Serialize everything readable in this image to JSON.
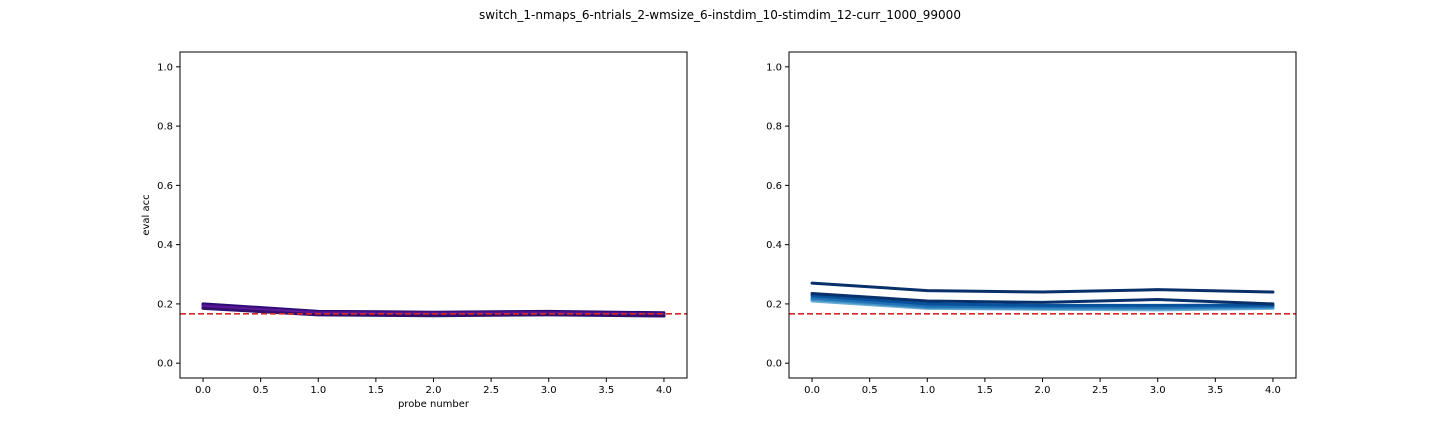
{
  "figure": {
    "suptitle": "switch_1-nmaps_6-ntrials_2-wmsize_6-instdim_10-stimdim_12-curr_1000_99000"
  },
  "chart_data": [
    {
      "type": "line",
      "title": "",
      "xlabel": "probe number",
      "ylabel": "eval acc",
      "xlim": [
        -0.2,
        4.2
      ],
      "ylim": [
        -0.05,
        1.05
      ],
      "xticks": [
        0.0,
        0.5,
        1.0,
        1.5,
        2.0,
        2.5,
        3.0,
        3.5,
        4.0
      ],
      "xtick_labels": [
        "0.0",
        "0.5",
        "1.0",
        "1.5",
        "2.0",
        "2.5",
        "3.0",
        "3.5",
        "4.0"
      ],
      "yticks": [
        0.0,
        0.2,
        0.4,
        0.6,
        0.8,
        1.0
      ],
      "ytick_labels": [
        "0.0",
        "0.2",
        "0.4",
        "0.6",
        "0.8",
        "1.0"
      ],
      "grid": false,
      "x": [
        0,
        1,
        2,
        3,
        4
      ],
      "reference_line": {
        "y": 0.1667,
        "color": "#d62728",
        "style": "dashed"
      },
      "series": [
        {
          "values": [
            0.2,
            0.175,
            0.172,
            0.175,
            0.17
          ],
          "color": "#2a0a72"
        },
        {
          "values": [
            0.196,
            0.172,
            0.17,
            0.172,
            0.167
          ],
          "color": "#3b0f80"
        },
        {
          "values": [
            0.193,
            0.17,
            0.168,
            0.17,
            0.165
          ],
          "color": "#4a148c"
        },
        {
          "values": [
            0.19,
            0.168,
            0.165,
            0.167,
            0.163
          ],
          "color": "#5c1a96"
        },
        {
          "values": [
            0.187,
            0.165,
            0.162,
            0.165,
            0.161
          ],
          "color": "#6a1b9a"
        },
        {
          "values": [
            0.185,
            0.163,
            0.16,
            0.163,
            0.159
          ],
          "color": "#33106e"
        }
      ]
    },
    {
      "type": "line",
      "title": "",
      "xlabel": "",
      "ylabel": "",
      "xlim": [
        -0.2,
        4.2
      ],
      "ylim": [
        -0.05,
        1.05
      ],
      "xticks": [
        0.0,
        0.5,
        1.0,
        1.5,
        2.0,
        2.5,
        3.0,
        3.5,
        4.0
      ],
      "xtick_labels": [
        "0.0",
        "0.5",
        "1.0",
        "1.5",
        "2.0",
        "2.5",
        "3.0",
        "3.5",
        "4.0"
      ],
      "yticks": [
        0.0,
        0.2,
        0.4,
        0.6,
        0.8,
        1.0
      ],
      "ytick_labels": [
        "0.0",
        "0.2",
        "0.4",
        "0.6",
        "0.8",
        "1.0"
      ],
      "grid": false,
      "x": [
        0,
        1,
        2,
        3,
        4
      ],
      "reference_line": {
        "y": 0.1667,
        "color": "#d62728",
        "style": "dashed"
      },
      "series": [
        {
          "values": [
            0.21,
            0.185,
            0.182,
            0.18,
            0.185
          ],
          "color": "#6baed6"
        },
        {
          "values": [
            0.215,
            0.188,
            0.185,
            0.185,
            0.188
          ],
          "color": "#4292c6"
        },
        {
          "values": [
            0.22,
            0.192,
            0.19,
            0.188,
            0.192
          ],
          "color": "#2171b5"
        },
        {
          "values": [
            0.228,
            0.2,
            0.195,
            0.195,
            0.196
          ],
          "color": "#08519c"
        },
        {
          "values": [
            0.235,
            0.21,
            0.205,
            0.215,
            0.2
          ],
          "color": "#08306b"
        },
        {
          "values": [
            0.27,
            0.245,
            0.24,
            0.248,
            0.24
          ],
          "color": "#08306b"
        }
      ]
    }
  ]
}
